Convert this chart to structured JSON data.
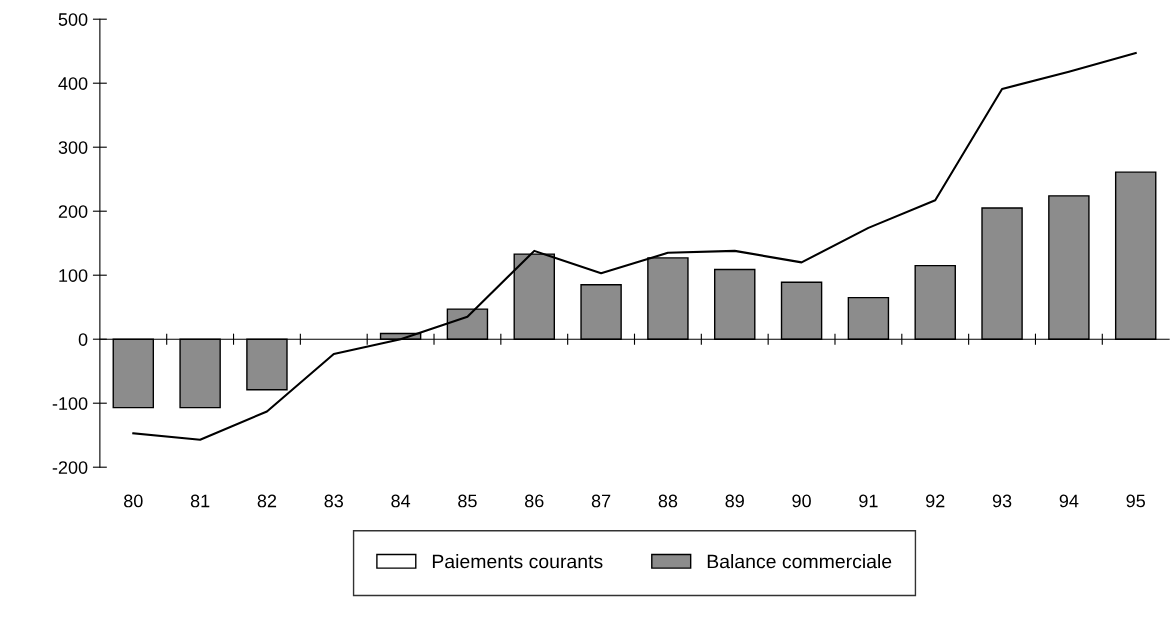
{
  "chart_data": {
    "type": "bar",
    "categories": [
      "80",
      "81",
      "82",
      "83",
      "84",
      "85",
      "86",
      "87",
      "88",
      "89",
      "90",
      "91",
      "92",
      "93",
      "94",
      "95"
    ],
    "series": [
      {
        "name": "Paiements courants",
        "type": "line",
        "color": "#000000",
        "values": [
          -147,
          -157,
          -113,
          -23,
          0,
          35,
          138,
          103,
          135,
          138,
          120,
          174,
          217,
          391,
          418,
          447
        ]
      },
      {
        "name": "Balance commerciale",
        "color": "#8c8c8c",
        "values": [
          -107,
          -107,
          -79,
          null,
          9,
          47,
          133,
          85,
          127,
          109,
          89,
          65,
          115,
          205,
          224,
          261
        ]
      }
    ],
    "ylim": [
      -200,
      500
    ],
    "yticks": [
      -200,
      -100,
      0,
      100,
      200,
      300,
      400,
      500
    ],
    "legend": "bottom",
    "marker": "none",
    "line_style": "solid"
  }
}
